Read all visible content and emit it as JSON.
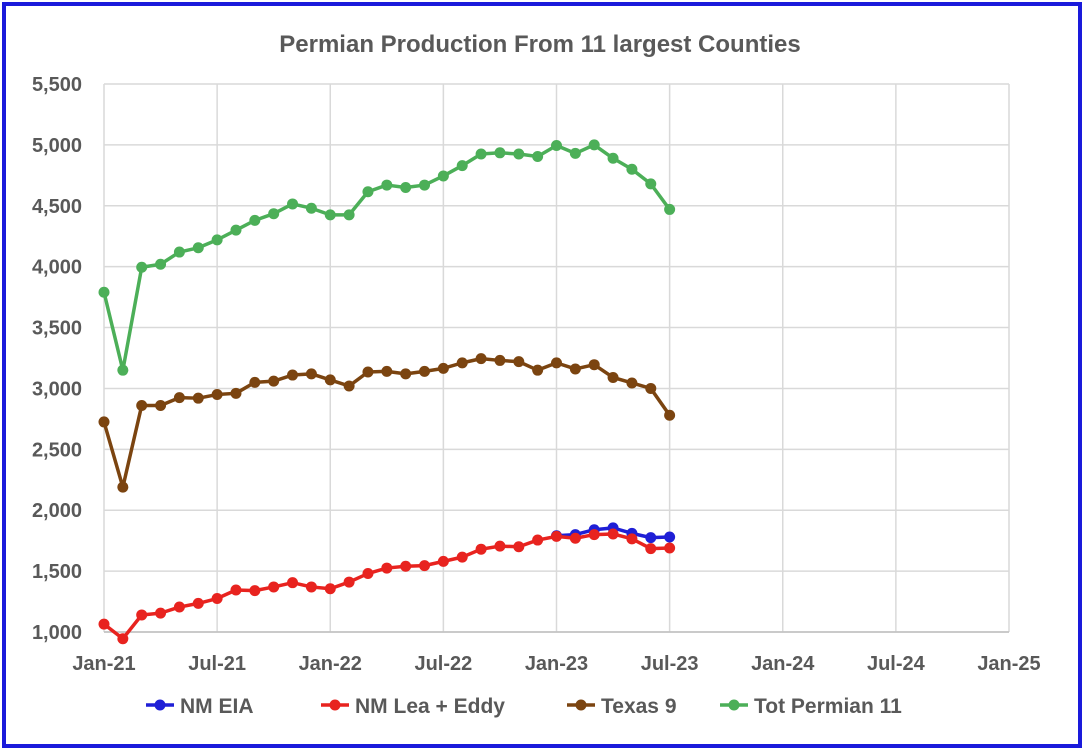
{
  "chart_data": {
    "type": "line",
    "title": "Permian Production From 11 largest Counties",
    "xlabel": "",
    "ylabel": "",
    "ylim": [
      1000,
      5500
    ],
    "yticks": [
      1000,
      1500,
      2000,
      2500,
      3000,
      3500,
      4000,
      4500,
      5000,
      5500
    ],
    "ytick_labels": [
      "1,000",
      "1,500",
      "2,000",
      "2,500",
      "3,000",
      "3,500",
      "4,000",
      "4,500",
      "5,000",
      "5,500"
    ],
    "xlim": [
      "2021-01",
      "2025-01"
    ],
    "xticks": [
      "2021-01",
      "2021-07",
      "2022-01",
      "2022-07",
      "2023-01",
      "2023-07",
      "2024-01",
      "2024-07",
      "2025-01"
    ],
    "xtick_labels": [
      "Jan-21",
      "Jul-21",
      "Jan-22",
      "Jul-22",
      "Jan-23",
      "Jul-23",
      "Jan-24",
      "Jul-24",
      "Jan-25"
    ],
    "grid": true,
    "legend_position": "bottom",
    "series": [
      {
        "name": "NM EIA",
        "color": "#1f1fd6",
        "x": [
          "2023-01",
          "2023-02",
          "2023-03",
          "2023-04",
          "2023-05",
          "2023-06",
          "2023-07"
        ],
        "values": [
          1790,
          1800,
          1840,
          1855,
          1810,
          1775,
          1780
        ]
      },
      {
        "name": "NM Lea + Eddy",
        "color": "#e8231f",
        "x": [
          "2021-01",
          "2021-02",
          "2021-03",
          "2021-04",
          "2021-05",
          "2021-06",
          "2021-07",
          "2021-08",
          "2021-09",
          "2021-10",
          "2021-11",
          "2021-12",
          "2022-01",
          "2022-02",
          "2022-03",
          "2022-04",
          "2022-05",
          "2022-06",
          "2022-07",
          "2022-08",
          "2022-09",
          "2022-10",
          "2022-11",
          "2022-12",
          "2023-01",
          "2023-02",
          "2023-03",
          "2023-04",
          "2023-05",
          "2023-06",
          "2023-07"
        ],
        "values": [
          1065,
          945,
          1140,
          1155,
          1205,
          1235,
          1275,
          1345,
          1340,
          1370,
          1405,
          1370,
          1355,
          1410,
          1480,
          1525,
          1540,
          1545,
          1580,
          1615,
          1680,
          1705,
          1700,
          1755,
          1785,
          1770,
          1800,
          1805,
          1765,
          1685,
          1690
        ]
      },
      {
        "name": "Texas 9",
        "color": "#7b4410",
        "x": [
          "2021-01",
          "2021-02",
          "2021-03",
          "2021-04",
          "2021-05",
          "2021-06",
          "2021-07",
          "2021-08",
          "2021-09",
          "2021-10",
          "2021-11",
          "2021-12",
          "2022-01",
          "2022-02",
          "2022-03",
          "2022-04",
          "2022-05",
          "2022-06",
          "2022-07",
          "2022-08",
          "2022-09",
          "2022-10",
          "2022-11",
          "2022-12",
          "2023-01",
          "2023-02",
          "2023-03",
          "2023-04",
          "2023-05",
          "2023-06",
          "2023-07"
        ],
        "values": [
          2725,
          2190,
          2860,
          2860,
          2925,
          2920,
          2950,
          2960,
          3050,
          3060,
          3110,
          3120,
          3070,
          3020,
          3135,
          3140,
          3120,
          3140,
          3165,
          3210,
          3245,
          3230,
          3220,
          3150,
          3210,
          3160,
          3195,
          3090,
          3045,
          3000,
          2780
        ]
      },
      {
        "name": "Tot Permian 11",
        "color": "#4caf58",
        "x": [
          "2021-01",
          "2021-02",
          "2021-03",
          "2021-04",
          "2021-05",
          "2021-06",
          "2021-07",
          "2021-08",
          "2021-09",
          "2021-10",
          "2021-11",
          "2021-12",
          "2022-01",
          "2022-02",
          "2022-03",
          "2022-04",
          "2022-05",
          "2022-06",
          "2022-07",
          "2022-08",
          "2022-09",
          "2022-10",
          "2022-11",
          "2022-12",
          "2023-01",
          "2023-02",
          "2023-03",
          "2023-04",
          "2023-05",
          "2023-06",
          "2023-07"
        ],
        "values": [
          3790,
          3150,
          3995,
          4020,
          4120,
          4155,
          4220,
          4300,
          4380,
          4435,
          4515,
          4480,
          4425,
          4425,
          4615,
          4670,
          4650,
          4670,
          4745,
          4830,
          4925,
          4935,
          4925,
          4905,
          4995,
          4930,
          5000,
          4890,
          4800,
          4680,
          4470
        ]
      }
    ]
  }
}
